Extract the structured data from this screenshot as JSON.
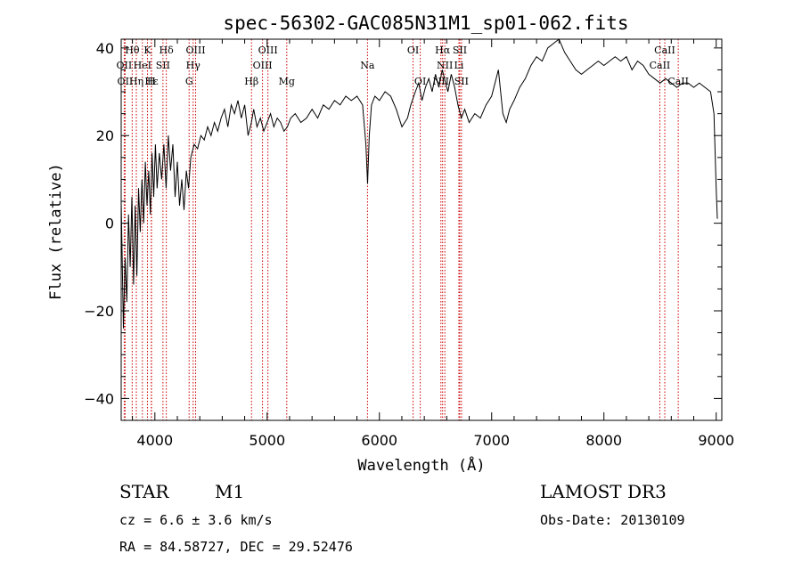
{
  "chart_data": {
    "type": "line",
    "title": "spec-56302-GAC085N31M1_sp01-062.fits",
    "xlabel": "Wavelength (Å)",
    "ylabel": "Flux (relative)",
    "xlim": [
      3700,
      9050
    ],
    "ylim": [
      -45,
      42
    ],
    "xticks": [
      4000,
      5000,
      6000,
      7000,
      8000,
      9000
    ],
    "yticks": [
      -40,
      -20,
      0,
      20,
      40
    ],
    "yticklabels": [
      "−40",
      "−20",
      "0",
      "20",
      "40"
    ],
    "series": [
      {
        "name": "flux",
        "points": [
          [
            3700,
            5
          ],
          [
            3720,
            -24
          ],
          [
            3735,
            -8
          ],
          [
            3750,
            -18
          ],
          [
            3765,
            2
          ],
          [
            3780,
            -10
          ],
          [
            3795,
            6
          ],
          [
            3810,
            -14
          ],
          [
            3825,
            4
          ],
          [
            3840,
            -12
          ],
          [
            3855,
            8
          ],
          [
            3870,
            -2
          ],
          [
            3885,
            10
          ],
          [
            3900,
            0
          ],
          [
            3915,
            14
          ],
          [
            3930,
            4
          ],
          [
            3945,
            12
          ],
          [
            3960,
            2
          ],
          [
            3975,
            16
          ],
          [
            3990,
            6
          ],
          [
            4005,
            18
          ],
          [
            4020,
            8
          ],
          [
            4040,
            16
          ],
          [
            4060,
            10
          ],
          [
            4080,
            18
          ],
          [
            4100,
            8
          ],
          [
            4120,
            20
          ],
          [
            4140,
            12
          ],
          [
            4160,
            18
          ],
          [
            4180,
            6
          ],
          [
            4200,
            14
          ],
          [
            4220,
            4
          ],
          [
            4240,
            10
          ],
          [
            4260,
            3
          ],
          [
            4280,
            12
          ],
          [
            4300,
            8
          ],
          [
            4320,
            15
          ],
          [
            4350,
            18
          ],
          [
            4380,
            17
          ],
          [
            4410,
            20
          ],
          [
            4440,
            19
          ],
          [
            4470,
            22
          ],
          [
            4500,
            20
          ],
          [
            4530,
            23
          ],
          [
            4560,
            21
          ],
          [
            4590,
            24
          ],
          [
            4620,
            26
          ],
          [
            4650,
            22
          ],
          [
            4680,
            27
          ],
          [
            4710,
            25
          ],
          [
            4740,
            28
          ],
          [
            4770,
            24
          ],
          [
            4800,
            27
          ],
          [
            4830,
            20
          ],
          [
            4860,
            23
          ],
          [
            4880,
            26
          ],
          [
            4910,
            22
          ],
          [
            4940,
            24
          ],
          [
            4970,
            21
          ],
          [
            5000,
            23
          ],
          [
            5030,
            25
          ],
          [
            5060,
            22
          ],
          [
            5090,
            24
          ],
          [
            5120,
            23
          ],
          [
            5150,
            21
          ],
          [
            5180,
            22
          ],
          [
            5210,
            24
          ],
          [
            5250,
            25
          ],
          [
            5300,
            23
          ],
          [
            5350,
            24
          ],
          [
            5400,
            26
          ],
          [
            5450,
            24
          ],
          [
            5500,
            27
          ],
          [
            5550,
            26
          ],
          [
            5600,
            28
          ],
          [
            5650,
            27
          ],
          [
            5700,
            29
          ],
          [
            5750,
            28
          ],
          [
            5800,
            29
          ],
          [
            5850,
            27
          ],
          [
            5880,
            18
          ],
          [
            5895,
            9
          ],
          [
            5910,
            20
          ],
          [
            5930,
            27
          ],
          [
            5960,
            29
          ],
          [
            6000,
            28
          ],
          [
            6050,
            30
          ],
          [
            6100,
            29
          ],
          [
            6150,
            26
          ],
          [
            6200,
            22
          ],
          [
            6250,
            24
          ],
          [
            6280,
            27
          ],
          [
            6320,
            30
          ],
          [
            6350,
            32
          ],
          [
            6380,
            28
          ],
          [
            6410,
            31
          ],
          [
            6440,
            33
          ],
          [
            6470,
            30
          ],
          [
            6500,
            34
          ],
          [
            6530,
            31
          ],
          [
            6560,
            35
          ],
          [
            6580,
            33
          ],
          [
            6610,
            30
          ],
          [
            6640,
            34
          ],
          [
            6670,
            31
          ],
          [
            6700,
            27
          ],
          [
            6730,
            24
          ],
          [
            6760,
            26
          ],
          [
            6800,
            23
          ],
          [
            6850,
            25
          ],
          [
            6900,
            24
          ],
          [
            6950,
            27
          ],
          [
            7000,
            29
          ],
          [
            7030,
            32
          ],
          [
            7060,
            35
          ],
          [
            7080,
            30
          ],
          [
            7100,
            25
          ],
          [
            7130,
            23
          ],
          [
            7160,
            26
          ],
          [
            7200,
            28
          ],
          [
            7250,
            31
          ],
          [
            7300,
            33
          ],
          [
            7350,
            36
          ],
          [
            7400,
            38
          ],
          [
            7450,
            37
          ],
          [
            7500,
            40
          ],
          [
            7550,
            41
          ],
          [
            7600,
            42
          ],
          [
            7650,
            39
          ],
          [
            7700,
            37
          ],
          [
            7750,
            35
          ],
          [
            7800,
            34
          ],
          [
            7850,
            35
          ],
          [
            7900,
            36
          ],
          [
            7950,
            37
          ],
          [
            8000,
            36
          ],
          [
            8050,
            37
          ],
          [
            8100,
            38
          ],
          [
            8150,
            37
          ],
          [
            8200,
            38
          ],
          [
            8250,
            35
          ],
          [
            8300,
            37
          ],
          [
            8350,
            36
          ],
          [
            8400,
            34
          ],
          [
            8450,
            33
          ],
          [
            8500,
            32
          ],
          [
            8550,
            33
          ],
          [
            8600,
            32
          ],
          [
            8650,
            31
          ],
          [
            8700,
            32
          ],
          [
            8750,
            32
          ],
          [
            8800,
            31
          ],
          [
            8850,
            32
          ],
          [
            8900,
            31
          ],
          [
            8950,
            30
          ],
          [
            8980,
            25
          ],
          [
            9000,
            8
          ],
          [
            9010,
            1
          ]
        ]
      }
    ],
    "lines": [
      {
        "label": "Hθ",
        "wave": 3798,
        "row": 0
      },
      {
        "label": "OII",
        "wave": 3727,
        "row": 1
      },
      {
        "label": "OII",
        "wave": 3735,
        "row": 2
      },
      {
        "label": "Hε",
        "wave": 3970,
        "row": 2
      },
      {
        "label": "Hη",
        "wave": 3835,
        "row": 2
      },
      {
        "label": "K",
        "wave": 3934,
        "row": 0
      },
      {
        "label": "HeI",
        "wave": 3889,
        "row": 1
      },
      {
        "label": "H",
        "wave": 3968,
        "row": 2
      },
      {
        "label": "Hδ",
        "wave": 4102,
        "row": 0
      },
      {
        "label": "SII",
        "wave": 4072,
        "row": 1
      },
      {
        "label": "OIII",
        "wave": 4363,
        "row": 0
      },
      {
        "label": "Hγ",
        "wave": 4341,
        "row": 1
      },
      {
        "label": "G",
        "wave": 4305,
        "row": 2
      },
      {
        "label": "Hβ",
        "wave": 4861,
        "row": 2
      },
      {
        "label": "OIII",
        "wave": 5007,
        "row": 0
      },
      {
        "label": "OIII",
        "wave": 4959,
        "row": 1
      },
      {
        "label": "Mg",
        "wave": 5175,
        "row": 2
      },
      {
        "label": "Na",
        "wave": 5894,
        "row": 1
      },
      {
        "label": "OI",
        "wave": 6300,
        "row": 0
      },
      {
        "label": "OI",
        "wave": 6364,
        "row": 2
      },
      {
        "label": "Hα",
        "wave": 6563,
        "row": 0
      },
      {
        "label": "SII",
        "wave": 6716,
        "row": 0
      },
      {
        "label": "NII",
        "wave": 6583,
        "row": 1
      },
      {
        "label": "Li",
        "wave": 6708,
        "row": 1
      },
      {
        "label": "NII",
        "wave": 6548,
        "row": 2
      },
      {
        "label": "SII",
        "wave": 6731,
        "row": 2
      },
      {
        "label": "CaII",
        "wave": 8542,
        "row": 0
      },
      {
        "label": "CaII",
        "wave": 8498,
        "row": 1
      },
      {
        "label": "CaII",
        "wave": 8662,
        "row": 2
      }
    ]
  },
  "info": {
    "class": "STAR",
    "subclass": "M1",
    "survey": "LAMOST DR3",
    "cz": "cz = 6.6 ± 3.6 km/s",
    "obs_date": "Obs-Date: 20130109",
    "radec": "RA =  84.58727, DEC =  29.52476"
  },
  "colors": {
    "line_marker": "#cc0000",
    "spectrum": "#000000",
    "axes": "#000000"
  }
}
